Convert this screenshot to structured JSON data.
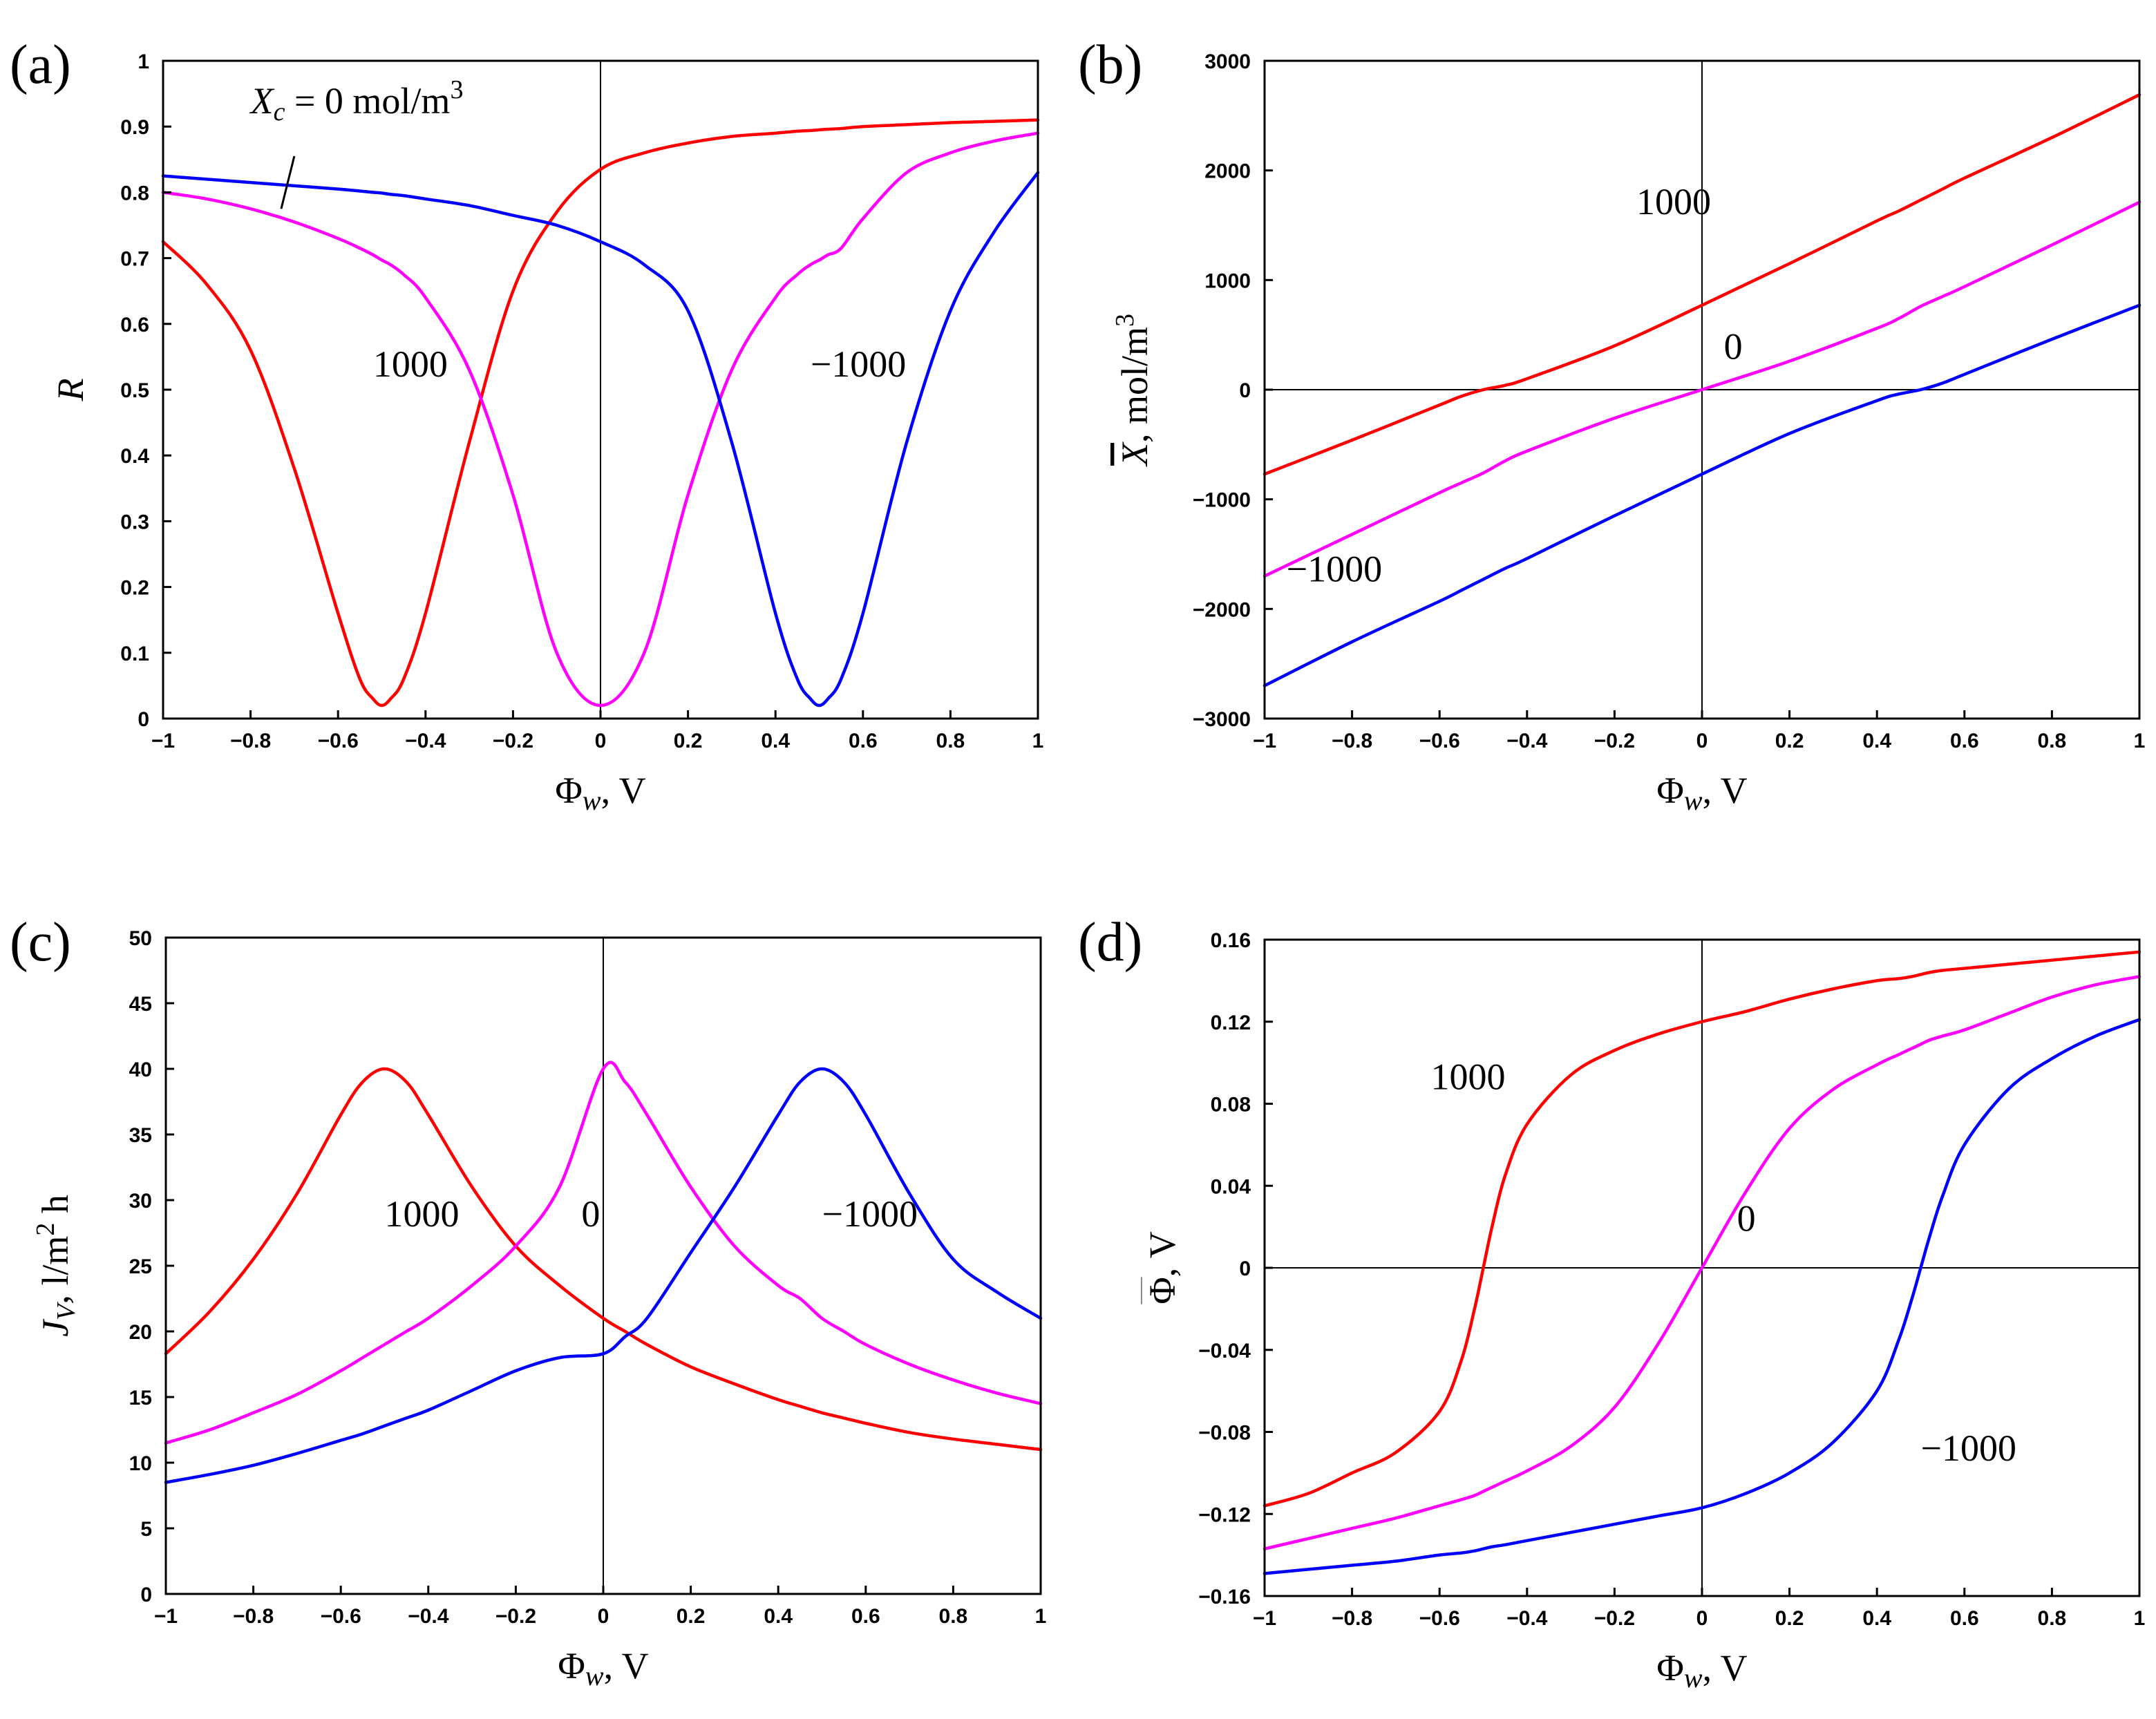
{
  "figure": {
    "x_label": "Φ",
    "x_label_sub": "w",
    "x_label_unit": ", V"
  },
  "colors": {
    "1000": "#ff0000",
    "0": "#ff00ff",
    "-1000": "#0000ff"
  },
  "chart_data": [
    {
      "id": "a",
      "panel_label": "(a)",
      "type": "line",
      "title": "",
      "xlabel": "Φw, V",
      "ylabel": "R",
      "ylabel_parts": [
        "R"
      ],
      "xlim": [
        -1,
        1
      ],
      "ylim": [
        0,
        1
      ],
      "x_ticks": [
        -1,
        -0.8,
        -0.6,
        -0.4,
        -0.2,
        0,
        0.2,
        0.4,
        0.6,
        0.8,
        1
      ],
      "y_ticks": [
        0,
        0.1,
        0.2,
        0.3,
        0.4,
        0.5,
        0.6,
        0.7,
        0.8,
        0.9,
        1
      ],
      "x_tick_labels": [
        "−1",
        "−0.8",
        "−0.6",
        "−0.4",
        "−0.2",
        "0",
        "0.2",
        "0.4",
        "0.6",
        "0.8",
        "1"
      ],
      "y_tick_labels": [
        "0",
        "0.1",
        "0.2",
        "0.3",
        "0.4",
        "0.5",
        "0.6",
        "0.7",
        "0.8",
        "0.9",
        "1"
      ],
      "x": [
        -1,
        -0.9,
        -0.8,
        -0.7,
        -0.6,
        -0.55,
        -0.52,
        -0.5,
        -0.48,
        -0.45,
        -0.4,
        -0.3,
        -0.2,
        -0.1,
        0,
        0.1,
        0.2,
        0.3,
        0.4,
        0.45,
        0.48,
        0.5,
        0.52,
        0.55,
        0.6,
        0.7,
        0.8,
        0.9,
        1
      ],
      "series": [
        {
          "name": "1000",
          "color_key": "1000",
          "values": [
            0.725,
            0.66,
            0.56,
            0.38,
            0.16,
            0.06,
            0.03,
            0.02,
            0.03,
            0.06,
            0.16,
            0.42,
            0.65,
            0.77,
            0.835,
            0.86,
            0.875,
            0.885,
            0.89,
            0.893,
            0.894,
            0.895,
            0.896,
            0.897,
            0.9,
            0.903,
            0.906,
            0.908,
            0.91
          ]
        },
        {
          "name": "0",
          "color_key": "0",
          "values": [
            0.8,
            0.79,
            0.775,
            0.755,
            0.73,
            0.715,
            0.705,
            0.697,
            0.69,
            0.675,
            0.64,
            0.53,
            0.34,
            0.1,
            0.02,
            0.1,
            0.34,
            0.53,
            0.64,
            0.675,
            0.69,
            0.697,
            0.705,
            0.715,
            0.76,
            0.83,
            0.86,
            0.878,
            0.89
          ]
        },
        {
          "name": "-1000",
          "color_key": "-1000",
          "values": [
            0.825,
            0.82,
            0.815,
            0.81,
            0.805,
            0.802,
            0.8,
            0.799,
            0.797,
            0.795,
            0.79,
            0.78,
            0.765,
            0.75,
            0.725,
            0.69,
            0.62,
            0.42,
            0.16,
            0.06,
            0.03,
            0.02,
            0.03,
            0.06,
            0.16,
            0.42,
            0.62,
            0.74,
            0.83
          ]
        }
      ],
      "annotations": [
        {
          "text": "1000",
          "x": -0.52,
          "y": 0.52
        },
        {
          "text": "−1000",
          "x": 0.48,
          "y": 0.52
        }
      ],
      "special_annotation": {
        "lhs": "X",
        "sub": "c",
        "rest": " = 0 mol/m",
        "sup": "3",
        "pointer_from": [
          -0.7,
          0.855
        ],
        "pointer_to": [
          -0.73,
          0.775
        ]
      }
    },
    {
      "id": "b",
      "panel_label": "(b)",
      "type": "line",
      "title": "",
      "xlabel": "Φw, V",
      "ylabel": "X̄, mol/m3",
      "ylabel_parts": [
        "X",
        ", mol/m",
        "3"
      ],
      "xlim": [
        -1,
        1
      ],
      "ylim": [
        -3000,
        3000
      ],
      "x_ticks": [
        -1,
        -0.8,
        -0.6,
        -0.4,
        -0.2,
        0,
        0.2,
        0.4,
        0.6,
        0.8,
        1
      ],
      "y_ticks": [
        -3000,
        -2000,
        -1000,
        0,
        1000,
        2000,
        3000
      ],
      "x_tick_labels": [
        "−1",
        "−0.8",
        "−0.6",
        "−0.4",
        "−0.2",
        "0",
        "0.2",
        "0.4",
        "0.6",
        "0.8",
        "1"
      ],
      "y_tick_labels": [
        "−3000",
        "−2000",
        "−1000",
        "0",
        "1000",
        "2000",
        "3000"
      ],
      "x": [
        -1,
        -0.8,
        -0.6,
        -0.55,
        -0.5,
        -0.45,
        -0.4,
        -0.2,
        0,
        0.2,
        0.4,
        0.45,
        0.5,
        0.55,
        0.6,
        0.8,
        1
      ],
      "series": [
        {
          "name": "1000",
          "color_key": "1000",
          "values": [
            -770,
            -460,
            -140,
            -60,
            0,
            40,
            100,
            400,
            770,
            1150,
            1540,
            1630,
            1730,
            1830,
            1930,
            2300,
            2690
          ]
        },
        {
          "name": "0",
          "color_key": "0",
          "values": [
            -1700,
            -1320,
            -940,
            -850,
            -760,
            -650,
            -560,
            -260,
            0,
            260,
            560,
            650,
            760,
            850,
            940,
            1320,
            1710
          ]
        },
        {
          "name": "-1000",
          "color_key": "-1000",
          "values": [
            -2700,
            -2300,
            -1930,
            -1830,
            -1730,
            -1630,
            -1540,
            -1150,
            -770,
            -400,
            -100,
            -40,
            0,
            60,
            140,
            460,
            770
          ]
        }
      ],
      "annotations": [
        {
          "text": "1000",
          "x": -0.15,
          "y": 1600
        },
        {
          "text": "0",
          "x": 0.05,
          "y": 280
        },
        {
          "text": "−1000",
          "x": -0.95,
          "y": -1750
        }
      ]
    },
    {
      "id": "c",
      "panel_label": "(c)",
      "type": "line",
      "title": "",
      "xlabel": "Φw, V",
      "ylabel": "JV, l/m2 h",
      "ylabel_parts": [
        "J",
        "V",
        ", l/m",
        "2",
        " h"
      ],
      "xlim": [
        -1,
        1
      ],
      "ylim": [
        0,
        50
      ],
      "x_ticks": [
        -1,
        -0.8,
        -0.6,
        -0.4,
        -0.2,
        0,
        0.2,
        0.4,
        0.6,
        0.8,
        1
      ],
      "y_ticks": [
        0,
        5,
        10,
        15,
        20,
        25,
        30,
        35,
        40,
        45,
        50
      ],
      "x_tick_labels": [
        "−1",
        "−0.8",
        "−0.6",
        "−0.4",
        "−0.2",
        "0",
        "0.2",
        "0.4",
        "0.6",
        "0.8",
        "1"
      ],
      "y_tick_labels": [
        "0",
        "5",
        "10",
        "15",
        "20",
        "25",
        "30",
        "35",
        "40",
        "45",
        "50"
      ],
      "x": [
        -1,
        -0.9,
        -0.8,
        -0.7,
        -0.6,
        -0.55,
        -0.5,
        -0.45,
        -0.4,
        -0.3,
        -0.2,
        -0.1,
        0,
        0.05,
        0.1,
        0.2,
        0.3,
        0.4,
        0.45,
        0.5,
        0.55,
        0.6,
        0.7,
        0.8,
        0.9,
        1
      ],
      "series": [
        {
          "name": "1000",
          "color_key": "1000",
          "values": [
            18.3,
            21.5,
            25.5,
            30.5,
            36.5,
            39,
            40,
            39,
            36.5,
            31,
            26.5,
            23.5,
            21,
            20,
            19,
            17.3,
            16,
            14.8,
            14.3,
            13.8,
            13.4,
            13,
            12.3,
            11.8,
            11.4,
            11
          ]
        },
        {
          "name": "0",
          "color_key": "0",
          "values": [
            11.5,
            12.5,
            13.8,
            15.2,
            17,
            18,
            19,
            20,
            21,
            23.5,
            26.5,
            31,
            40,
            39,
            36.5,
            31,
            26.5,
            23.5,
            22.5,
            21,
            20,
            19,
            17.5,
            16.3,
            15.3,
            14.5
          ]
        },
        {
          "name": "-1000",
          "color_key": "-1000",
          "values": [
            8.5,
            9.1,
            9.8,
            10.7,
            11.7,
            12.2,
            12.8,
            13.4,
            14,
            15.5,
            17,
            18,
            18.3,
            19.6,
            21,
            26,
            31,
            36.5,
            39,
            40,
            39,
            36.5,
            30.5,
            25.5,
            23,
            21
          ]
        }
      ],
      "annotations": [
        {
          "text": "1000",
          "x": -0.5,
          "y": 28
        },
        {
          "text": "0",
          "x": -0.05,
          "y": 28
        },
        {
          "text": "−1000",
          "x": 0.5,
          "y": 28
        }
      ]
    },
    {
      "id": "d",
      "panel_label": "(d)",
      "type": "line",
      "title": "",
      "xlabel": "Φw, V",
      "ylabel": "Φ̄, V",
      "ylabel_parts": [
        "Φ",
        ", V"
      ],
      "xlim": [
        -1,
        1
      ],
      "ylim": [
        -0.16,
        0.16
      ],
      "x_ticks": [
        -1,
        -0.8,
        -0.6,
        -0.4,
        -0.2,
        0,
        0.2,
        0.4,
        0.6,
        0.8,
        1
      ],
      "y_ticks": [
        -0.16,
        -0.12,
        -0.08,
        -0.04,
        0,
        0.04,
        0.08,
        0.12,
        0.16
      ],
      "x_tick_labels": [
        "−1",
        "−0.8",
        "−0.6",
        "−0.4",
        "−0.2",
        "0",
        "0.2",
        "0.4",
        "0.6",
        "0.8",
        "1"
      ],
      "y_tick_labels": [
        "−0.16",
        "−0.12",
        "−0.08",
        "−0.04",
        "0",
        "0.04",
        "0.08",
        "0.12",
        "0.16"
      ],
      "x": [
        -1,
        -0.9,
        -0.8,
        -0.7,
        -0.6,
        -0.55,
        -0.52,
        -0.5,
        -0.48,
        -0.45,
        -0.4,
        -0.3,
        -0.2,
        -0.1,
        0,
        0.1,
        0.2,
        0.3,
        0.4,
        0.45,
        0.48,
        0.5,
        0.52,
        0.55,
        0.6,
        0.7,
        0.8,
        0.9,
        1
      ],
      "series": [
        {
          "name": "1000",
          "color_key": "1000",
          "values": [
            -0.116,
            -0.11,
            -0.1,
            -0.09,
            -0.07,
            -0.045,
            -0.02,
            0,
            0.02,
            0.045,
            0.07,
            0.094,
            0.106,
            0.114,
            0.12,
            0.125,
            0.131,
            0.136,
            0.14,
            0.141,
            0.142,
            0.143,
            0.144,
            0.145,
            0.146,
            0.148,
            0.15,
            0.152,
            0.154
          ]
        },
        {
          "name": "0",
          "color_key": "0",
          "values": [
            -0.137,
            -0.132,
            -0.127,
            -0.122,
            -0.116,
            -0.113,
            -0.111,
            -0.109,
            -0.107,
            -0.104,
            -0.099,
            -0.087,
            -0.068,
            -0.037,
            0,
            0.037,
            0.068,
            0.087,
            0.099,
            0.104,
            0.107,
            0.109,
            0.111,
            0.113,
            0.116,
            0.124,
            0.132,
            0.138,
            0.142
          ]
        },
        {
          "name": "-1000",
          "color_key": "-1000",
          "values": [
            -0.149,
            -0.147,
            -0.145,
            -0.143,
            -0.14,
            -0.139,
            -0.138,
            -0.137,
            -0.136,
            -0.135,
            -0.133,
            -0.129,
            -0.125,
            -0.121,
            -0.117,
            -0.11,
            -0.1,
            -0.085,
            -0.06,
            -0.035,
            -0.015,
            0,
            0.015,
            0.035,
            0.06,
            0.087,
            0.102,
            0.113,
            0.121
          ]
        }
      ],
      "annotations": [
        {
          "text": "1000",
          "x": -0.62,
          "y": 0.087
        },
        {
          "text": "0",
          "x": 0.08,
          "y": 0.018
        },
        {
          "text": "−1000",
          "x": 0.5,
          "y": -0.094
        }
      ]
    }
  ]
}
